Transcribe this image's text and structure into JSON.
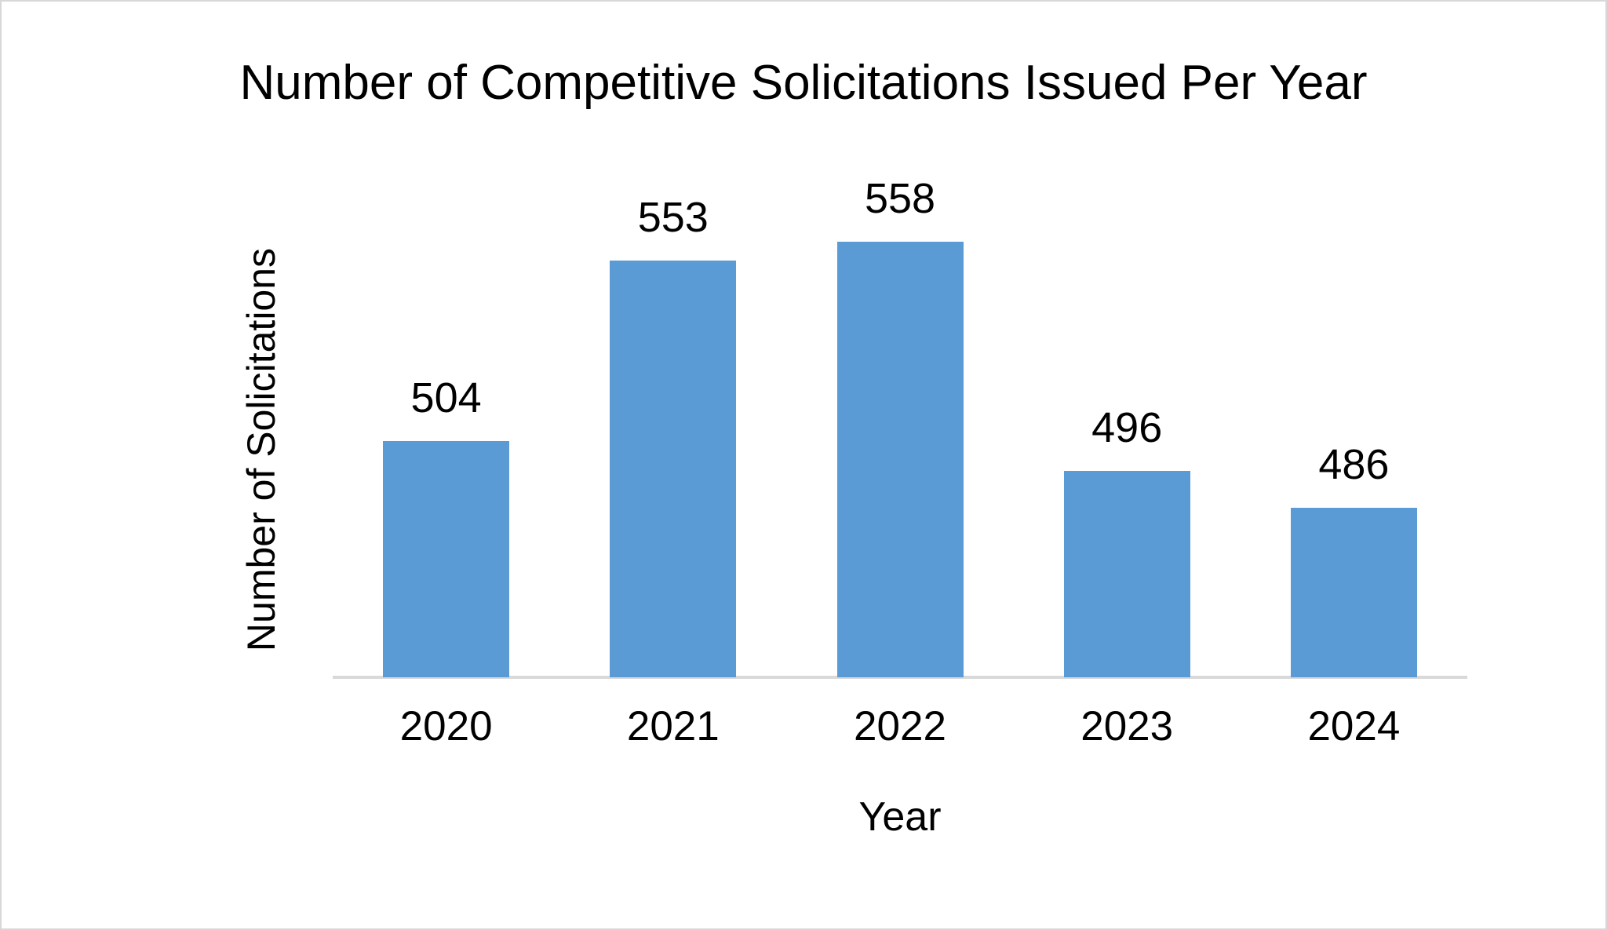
{
  "frame": {
    "background_color": "#FFFFFF",
    "border_color": "#D8D8D8"
  },
  "chart_data": {
    "type": "bar",
    "title": "Number of Competitive Solicitations Issued Per Year",
    "xlabel": "Year",
    "ylabel": "Number of Solicitations",
    "categories": [
      "2020",
      "2021",
      "2022",
      "2023",
      "2024"
    ],
    "values": [
      504,
      553,
      558,
      496,
      486
    ],
    "data_labels_shown": true,
    "bar_color": "#5B9BD5",
    "axis_line_color": "#D9D9D9",
    "text_color": "#000000",
    "ylim": [
      440,
      560
    ],
    "gridlines": false,
    "legend": "none",
    "y_axis_tick_labels_shown": false
  }
}
